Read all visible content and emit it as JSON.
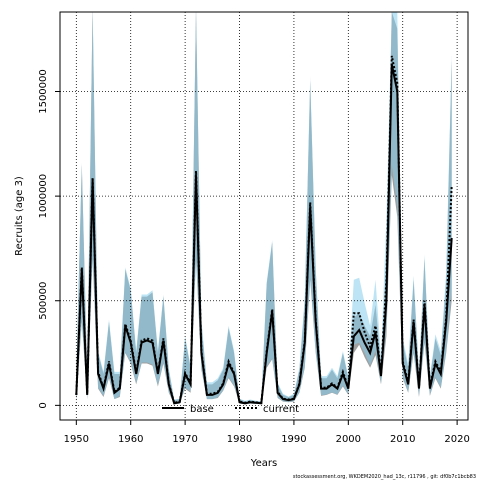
{
  "chart_data": {
    "type": "line",
    "title": "",
    "xlabel": "Years",
    "ylabel": "Recruits (age 3)",
    "xlim": [
      1947,
      2022
    ],
    "ylim": [
      -70000,
      1880000
    ],
    "x_ticks": [
      1950,
      1960,
      1970,
      1980,
      1990,
      2000,
      2010,
      2020
    ],
    "x_tick_labels": [
      "1950",
      "1960",
      "1970",
      "1980",
      "1990",
      "2000",
      "2010",
      "2020"
    ],
    "y_ticks": [
      0,
      500000,
      1000000,
      1500000
    ],
    "y_tick_labels": [
      "0",
      "500000",
      "1000000",
      "1500000"
    ],
    "grid": "dotted",
    "legend_position": "bottom",
    "footer": "stockassessment.org, WKDEM2020_had_13c, r11796 , git: df0b7c1bcb83",
    "colors": {
      "base_line": "#000000",
      "base_band": "#808080",
      "current_line": "#000000",
      "current_band": "#87CEEB"
    },
    "x": [
      1950,
      1951,
      1952,
      1953,
      1954,
      1955,
      1956,
      1957,
      1958,
      1959,
      1960,
      1961,
      1962,
      1963,
      1964,
      1965,
      1966,
      1967,
      1968,
      1969,
      1970,
      1971,
      1972,
      1973,
      1974,
      1975,
      1976,
      1977,
      1978,
      1979,
      1980,
      1981,
      1982,
      1983,
      1984,
      1985,
      1986,
      1987,
      1988,
      1989,
      1990,
      1991,
      1992,
      1993,
      1994,
      1995,
      1996,
      1997,
      1998,
      1999,
      2000,
      2001,
      2002,
      2003,
      2004,
      2005,
      2006,
      2007,
      2008,
      2009,
      2010,
      2011,
      2012,
      2013,
      2014,
      2015,
      2016,
      2017,
      2018,
      2019
    ],
    "series": [
      {
        "name": "base",
        "style": "solid",
        "values": [
          50000,
          650000,
          50000,
          1080000,
          150000,
          80000,
          200000,
          60000,
          80000,
          380000,
          300000,
          150000,
          300000,
          310000,
          300000,
          150000,
          310000,
          100000,
          10000,
          15000,
          150000,
          100000,
          1100000,
          250000,
          50000,
          50000,
          60000,
          100000,
          200000,
          150000,
          15000,
          10000,
          15000,
          12000,
          10000,
          250000,
          450000,
          60000,
          30000,
          25000,
          30000,
          100000,
          300000,
          950000,
          400000,
          80000,
          80000,
          100000,
          80000,
          150000,
          80000,
          330000,
          360000,
          300000,
          250000,
          350000,
          140000,
          500000,
          1630000,
          1500000,
          200000,
          100000,
          400000,
          80000,
          480000,
          80000,
          200000,
          150000,
          400000,
          800000
        ],
        "lower": [
          20000,
          400000,
          30000,
          700000,
          80000,
          40000,
          130000,
          30000,
          40000,
          250000,
          200000,
          100000,
          200000,
          200000,
          190000,
          90000,
          200000,
          60000,
          5000,
          8000,
          80000,
          60000,
          700000,
          170000,
          30000,
          30000,
          35000,
          70000,
          130000,
          90000,
          8000,
          5000,
          8000,
          7000,
          6000,
          180000,
          220000,
          35000,
          18000,
          15000,
          18000,
          60000,
          180000,
          600000,
          250000,
          45000,
          50000,
          60000,
          50000,
          90000,
          50000,
          250000,
          290000,
          230000,
          180000,
          240000,
          100000,
          330000,
          1100000,
          900000,
          130000,
          60000,
          250000,
          40000,
          300000,
          45000,
          130000,
          80000,
          250000,
          500000
        ],
        "upper": [
          150000,
          1150000,
          150000,
          1900000,
          250000,
          150000,
          400000,
          150000,
          150000,
          650000,
          550000,
          250000,
          520000,
          520000,
          540000,
          250000,
          520000,
          170000,
          25000,
          30000,
          320000,
          180000,
          1900000,
          400000,
          100000,
          100000,
          120000,
          170000,
          370000,
          250000,
          30000,
          20000,
          25000,
          20000,
          18000,
          580000,
          780000,
          100000,
          50000,
          40000,
          50000,
          170000,
          500000,
          1550000,
          650000,
          130000,
          130000,
          170000,
          130000,
          250000,
          130000,
          420000,
          440000,
          380000,
          330000,
          480000,
          200000,
          700000,
          1880000,
          1800000,
          300000,
          180000,
          600000,
          150000,
          700000,
          130000,
          320000,
          240000,
          600000,
          1650000
        ]
      },
      {
        "name": "current",
        "style": "dotted",
        "values": [
          50000,
          660000,
          55000,
          1090000,
          160000,
          85000,
          210000,
          65000,
          85000,
          390000,
          310000,
          155000,
          310000,
          320000,
          310000,
          155000,
          320000,
          105000,
          12000,
          18000,
          155000,
          105000,
          1120000,
          260000,
          55000,
          55000,
          65000,
          105000,
          210000,
          155000,
          18000,
          12000,
          18000,
          14000,
          12000,
          260000,
          460000,
          65000,
          32000,
          28000,
          32000,
          105000,
          310000,
          970000,
          410000,
          85000,
          85000,
          105000,
          85000,
          160000,
          85000,
          440000,
          440000,
          350000,
          280000,
          380000,
          150000,
          600000,
          1670000,
          1540000,
          210000,
          110000,
          410000,
          90000,
          500000,
          90000,
          210000,
          160000,
          420000,
          1050000
        ],
        "lower": [
          20000,
          410000,
          30000,
          710000,
          85000,
          45000,
          135000,
          30000,
          45000,
          255000,
          205000,
          105000,
          205000,
          205000,
          195000,
          95000,
          205000,
          65000,
          6000,
          9000,
          85000,
          65000,
          710000,
          175000,
          30000,
          30000,
          38000,
          72000,
          135000,
          95000,
          9000,
          6000,
          9000,
          8000,
          7000,
          185000,
          225000,
          38000,
          20000,
          17000,
          20000,
          62000,
          185000,
          610000,
          255000,
          48000,
          52000,
          62000,
          52000,
          95000,
          52000,
          290000,
          300000,
          250000,
          190000,
          260000,
          105000,
          380000,
          1150000,
          950000,
          135000,
          62000,
          255000,
          45000,
          310000,
          48000,
          135000,
          85000,
          260000,
          550000
        ],
        "upper": [
          150000,
          1160000,
          150000,
          1900000,
          260000,
          160000,
          410000,
          160000,
          160000,
          660000,
          560000,
          260000,
          530000,
          530000,
          550000,
          260000,
          530000,
          180000,
          28000,
          32000,
          330000,
          190000,
          1900000,
          410000,
          110000,
          110000,
          130000,
          180000,
          380000,
          260000,
          32000,
          22000,
          28000,
          22000,
          20000,
          590000,
          790000,
          110000,
          55000,
          42000,
          55000,
          180000,
          520000,
          1570000,
          660000,
          140000,
          140000,
          180000,
          140000,
          260000,
          140000,
          600000,
          610000,
          490000,
          380000,
          600000,
          230000,
          900000,
          1880000,
          1880000,
          320000,
          200000,
          620000,
          160000,
          720000,
          140000,
          340000,
          260000,
          640000,
          1680000
        ]
      }
    ]
  }
}
